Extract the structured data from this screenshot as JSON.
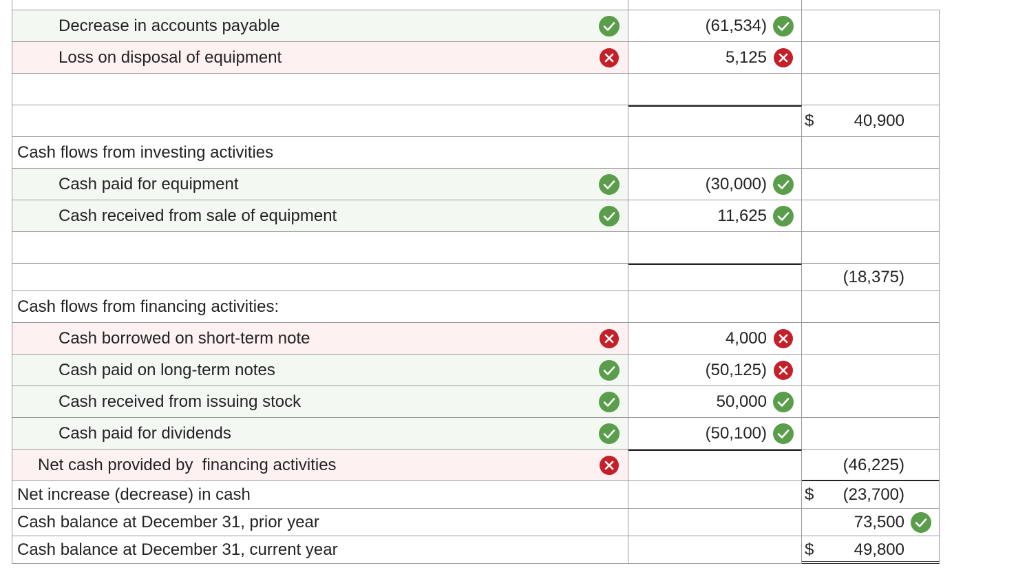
{
  "table": {
    "rows": [
      {
        "label": "Decrease in accounts payable",
        "indent": 1,
        "label_mark": "check",
        "amount": "(61,534)",
        "amount_mark": "check"
      },
      {
        "label": "Loss on disposal of equipment",
        "indent": 1,
        "label_mark": "cross",
        "amount": "5,125",
        "amount_mark": "cross"
      },
      {},
      {
        "amount_rule": true,
        "dollar": "$",
        "total": "40,900"
      },
      {
        "label": "Cash flows from investing activities",
        "indent": 0
      },
      {
        "label": "Cash paid for equipment",
        "indent": 1,
        "label_mark": "check",
        "amount": "(30,000)",
        "amount_mark": "check"
      },
      {
        "label": "Cash received from sale of equipment",
        "indent": 1,
        "label_mark": "check",
        "amount": "11,625",
        "amount_mark": "check"
      },
      {},
      {
        "amount_rule": true,
        "total": "(18,375)",
        "short": true
      },
      {
        "label": "Cash flows from financing activities:",
        "indent": 0
      },
      {
        "label": "Cash borrowed on short-term note",
        "indent": 1,
        "label_mark": "cross",
        "amount": "4,000",
        "amount_mark": "cross"
      },
      {
        "label": "Cash paid on long-term notes",
        "indent": 1,
        "label_mark": "check",
        "amount": "(50,125)",
        "amount_mark": "cross"
      },
      {
        "label": "Cash received from issuing stock",
        "indent": 1,
        "label_mark": "check",
        "amount": "50,000",
        "amount_mark": "check"
      },
      {
        "label": "Cash paid for dividends",
        "indent": 1,
        "label_mark": "check",
        "amount": "(50,100)",
        "amount_mark": "check"
      },
      {
        "label": "Net cash provided by  financing activities",
        "indent": 0.5,
        "label_mark": "cross",
        "amount_rule": true,
        "total": "(46,225)",
        "total_rule": "single"
      },
      {
        "label": "Net increase (decrease) in cash",
        "indent": 0,
        "dollar": "$",
        "total": "(23,700)",
        "short": true
      },
      {
        "label": "Cash balance at December 31, prior year",
        "indent": 0,
        "total": "73,500",
        "total_mark": "check",
        "short": true
      },
      {
        "label": "Cash balance at December 31, current year",
        "indent": 0,
        "dollar": "$",
        "total": "49,800",
        "total_rule": "double",
        "short": true
      }
    ]
  }
}
